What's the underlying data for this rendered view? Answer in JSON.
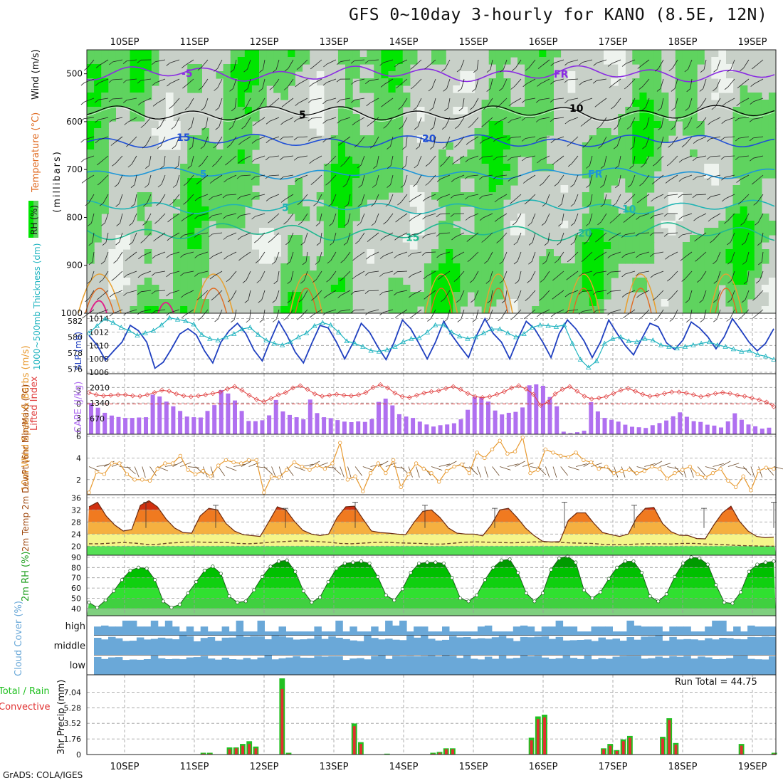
{
  "title": "GFS 0~10day 3-hourly for KANO (8.5E, 12N)",
  "footer": "GrADS: COLA/IGES",
  "run_total": "Run Total = 44.75",
  "colors": {
    "rh_dark": "#00e600",
    "rh_mid": "#5fd35f",
    "rh_light": "#c8d0c8",
    "rh_white": "#eef3ee",
    "purple": "#8a2be2",
    "blue": "#1f4fd6",
    "lightblue": "#1e96d8",
    "teal": "#20b4b4",
    "green_teal": "#20b890",
    "orange": "#e8a030",
    "darkorange": "#e06a20",
    "magenta": "#e0208a",
    "slp": "#2040c0",
    "thickness": "#20b4c0",
    "cape": "#b070f0",
    "li": "#e04040",
    "wind10": "#e89a30",
    "cloud": "#6aa8d8",
    "precip_green": "#22c022",
    "precip_red": "#e03030"
  },
  "chart_data": [
    {
      "type": "heatmap",
      "panel": "upper-air",
      "x_labels": [
        "10SEP",
        "11SEP",
        "12SEP",
        "13SEP",
        "14SEP",
        "15SEP",
        "16SEP",
        "17SEP",
        "18SEP",
        "19SEP"
      ],
      "y_ticks": [
        500,
        600,
        700,
        800,
        900,
        1000
      ],
      "ylim": [
        450,
        1000
      ],
      "ylabel": "(millibars)",
      "legend": [
        "RH (%)",
        "Temperature (°C)",
        "Wind (m/s)"
      ],
      "contour_labels": [
        "-5",
        "FR",
        "5",
        "10",
        "15",
        "20",
        "-5",
        "FR",
        "5",
        "10",
        "15",
        "20"
      ]
    },
    {
      "type": "line",
      "panel": "slp-thickness",
      "ylabel_left": "1000~500mb Thickness (dm)",
      "ylabel_right": "SLP (mb)",
      "left_ticks": [
        576,
        578,
        580,
        582
      ],
      "right_ticks": [
        1006,
        1008,
        1010,
        1012,
        1014
      ],
      "series": [
        {
          "name": "SLP",
          "axis": "right",
          "values": [
            1011.5,
            1010,
            1007.8,
            1009.2,
            1010.5,
            1013,
            1012.2,
            1010.5,
            1006.6,
            1007.5,
            1009.5,
            1011.7,
            1012.5,
            1011.6,
            1009.2,
            1007.4,
            1010.5,
            1012.2,
            1013.3,
            1011.8,
            1009.3,
            1007.7,
            1010.8,
            1013.6,
            1011.5,
            1009,
            1007.4,
            1010.3,
            1013,
            1012.6,
            1010.5,
            1008,
            1010.4,
            1013.3,
            1012,
            1009.8,
            1007.9,
            1010.5,
            1013.8,
            1012.5,
            1010.3,
            1008,
            1010.5,
            1013.6,
            1011.5,
            1009.8,
            1008.2,
            1011.5,
            1014,
            1011.8,
            1010.5,
            1008,
            1011,
            1013.6,
            1012.5,
            1010.5,
            1008.2,
            1011.8,
            1013.8,
            1012.5,
            1010.7,
            1008.2,
            1010.5,
            1013.8,
            1011.8,
            1010,
            1008.6,
            1011,
            1013.3,
            1012.8,
            1010.4,
            1009.4,
            1010.8,
            1013.5,
            1012.6,
            1011.3,
            1009.5,
            1011.3,
            1014,
            1012.3,
            1010.5,
            1009.2,
            1010.3,
            1012.5
          ]
        },
        {
          "name": "Thickness",
          "axis": "left",
          "values": [
            580.5,
            581.4,
            582.3,
            581.8,
            581.2,
            580.8,
            580.2,
            580.5,
            580.8,
            581.5,
            582.4,
            582.2,
            582,
            581.6,
            580.3,
            579.8,
            579.6,
            580,
            580.4,
            581,
            581.2,
            580.3,
            579.6,
            579.2,
            579,
            579.4,
            580,
            580.5,
            581.4,
            581.8,
            581.5,
            580.6,
            579.5,
            579.2,
            578.8,
            578.3,
            578.2,
            578.4,
            578.8,
            579.4,
            579.8,
            579.9,
            580.6,
            581.5,
            581.5,
            580.6,
            580.1,
            579.8,
            580,
            580.5,
            581,
            581,
            580.5,
            580,
            580.4,
            581.2,
            581.5,
            581.4,
            581.3,
            581.5,
            579.2,
            577.2,
            576.2,
            577,
            579.2,
            579.8,
            580,
            579.5,
            579.4,
            579.8,
            579.6,
            579,
            578.8,
            578.6,
            578.8,
            579,
            579.2,
            579.4,
            579,
            578.8,
            578.5,
            578.2,
            578.3,
            577.8,
            577.6,
            577.2
          ]
        }
      ]
    },
    {
      "type": "bar",
      "panel": "cape-li",
      "ylabel_left": "Lifted Index",
      "ylabel_right": "CAPE (J/kg)",
      "li_ticks": [
        "-3",
        "0",
        "3",
        "6"
      ],
      "cape_ticks": [
        "2010",
        "1340",
        "670"
      ],
      "series": [
        {
          "name": "CAPE",
          "values": [
            1340,
            1140,
            920,
            800,
            740,
            700,
            700,
            720,
            730,
            1700,
            1620,
            1400,
            1200,
            1000,
            760,
            730,
            720,
            1000,
            1250,
            1900,
            1750,
            1450,
            1000,
            570,
            560,
            600,
            810,
            1470,
            980,
            830,
            730,
            640,
            1490,
            910,
            730,
            690,
            610,
            540,
            520,
            550,
            530,
            650,
            1390,
            1530,
            1240,
            860,
            760,
            700,
            540,
            420,
            330,
            390,
            420,
            470,
            640,
            1050,
            1600,
            1580,
            1400,
            1020,
            850,
            920,
            960,
            1150,
            2100,
            2140,
            2080,
            1600,
            1200,
            110,
            50,
            90,
            150,
            1380,
            980,
            700,
            620,
            540,
            410,
            320,
            300,
            270,
            390,
            480,
            590,
            770,
            940,
            750,
            560,
            530,
            410,
            370,
            290,
            550,
            900,
            620,
            420,
            340,
            240,
            280
          ]
        },
        {
          "name": "LI",
          "values": [
            -2.5,
            -2,
            -1.8,
            -1.9,
            -2,
            -2,
            -1.8,
            -1.7,
            -2,
            -2.5,
            -3,
            -2.8,
            -2.2,
            -1.8,
            -1.6,
            -1.8,
            -2,
            -2.3,
            -2.6,
            -3.3,
            -3.8,
            -3,
            -1.9,
            -1,
            -0.5,
            -1.2,
            -2,
            -2.5,
            -3.5,
            -4,
            -3.2,
            -2.2,
            -1.7,
            -1.9,
            -2.1,
            -1.9,
            -1.8,
            -2,
            -2.5,
            -3.6,
            -4.2,
            -3.5,
            -2.4,
            -1.6,
            -1.4,
            -1.9,
            -2.4,
            -2.7,
            -2.9,
            -3.4,
            -3.8,
            -3.2,
            -2.3,
            -1.6,
            -1.4,
            -1.6,
            -2.1,
            -2.7,
            -3.5,
            -4,
            -3.3,
            -2.1,
            0.3,
            -0.4,
            -2.2,
            -3.2,
            -3.8,
            -2.8,
            -1.7,
            -1.1,
            -1.3,
            -1.6,
            -2.3,
            -3,
            -3.4,
            -2.8,
            -2.1,
            -1.7,
            -1.9,
            -2.3,
            -2.6,
            -2.6,
            -2.4,
            -2,
            -1.6,
            -1.9,
            -2.3,
            -2.5,
            -2.3,
            -1.9,
            -1.7,
            -1.3,
            -0.9,
            -0.4,
            0.6
          ]
        }
      ]
    },
    {
      "type": "line",
      "panel": "wind10m",
      "ylabel": "10m Wind Speed & Barbs (m/s)",
      "y_ticks": [
        2,
        4,
        6
      ],
      "ylim": [
        0.6,
        6.2
      ],
      "series": [
        {
          "name": "10m Wind Speed",
          "values": [
            0.8,
            2.7,
            2.5,
            3.5,
            3.5,
            2.5,
            2,
            2,
            1.9,
            3,
            3.5,
            3.5,
            4.2,
            2.9,
            2.5,
            2.8,
            2.3,
            3.3,
            3.8,
            3.6,
            3.5,
            3.8,
            3.8,
            0.8,
            2.3,
            2.2,
            2.9,
            3.6,
            3.2,
            2.9,
            3.3,
            3,
            3.5,
            5.4,
            2,
            2.3,
            0.9,
            2.6,
            3.5,
            2.6,
            3.8,
            1.3,
            2.5,
            3.5,
            3,
            2.6,
            1.8,
            2.8,
            3.2,
            3.4,
            2.6,
            4.5,
            4,
            4.8,
            5.6,
            4.4,
            4.6,
            5.9,
            2.6,
            2.9,
            4.8,
            4.5,
            4.2,
            4.1,
            4.5,
            3.8,
            3.6,
            3,
            3.2,
            2.6,
            2.8,
            2.9,
            2.6,
            2.8,
            3.2,
            3,
            2.1,
            2.6,
            2.9,
            3.2,
            2.5,
            2.2,
            2.6,
            3,
            1.9,
            1.3,
            2.3,
            1,
            2.8,
            3.1,
            3
          ]
        }
      ]
    },
    {
      "type": "area",
      "panel": "temp-dewpoint",
      "ylabel": "2m Temp 2m DewPt (6hr Min/Max) (°C)",
      "y_ticks": [
        20,
        24,
        28,
        32,
        36
      ],
      "ylim": [
        17,
        37
      ],
      "series": [
        {
          "name": "2m Temp",
          "values": [
            33,
            34.5,
            30,
            27,
            25,
            25.5,
            33.5,
            35,
            33,
            29,
            26,
            24.5,
            24.3,
            30,
            32.5,
            32,
            27.5,
            25,
            23.8,
            23.5,
            23.2,
            28,
            33,
            32,
            28.2,
            25.2,
            24,
            23.5,
            24,
            29.5,
            33,
            33.2,
            29,
            25,
            24.5,
            24.3,
            24,
            23.8,
            28,
            31.5,
            32,
            29.5,
            26,
            24.3,
            24,
            24,
            23.4,
            27,
            32,
            32.5,
            29.5,
            26,
            23.5,
            21.6,
            21.4,
            21.5,
            28.5,
            31,
            31,
            27.5,
            24.5,
            23.8,
            23.2,
            24,
            29.5,
            32.5,
            32.8,
            27.5,
            24.8,
            23.6,
            23.5,
            22.5,
            22.4,
            27,
            31,
            33.2,
            28.2,
            25,
            23.2,
            22.8,
            23
          ]
        },
        {
          "name": "2m DewPt",
          "values": [
            20.8,
            20.8,
            21,
            21.2,
            21,
            20.6,
            20.6,
            21,
            21.2,
            21.4,
            21.3,
            21.2,
            21.2,
            20.9,
            20.8,
            21,
            21.3,
            21.5,
            21.7,
            21.7,
            21.5,
            21.3,
            20.9,
            20.8,
            21,
            21.2,
            21.3,
            21.1,
            21,
            20.9,
            20.7,
            20.7,
            21,
            21.3,
            21.4,
            21.3,
            21.2,
            21.1,
            21.2,
            21.4,
            21.4,
            21.3,
            21.1,
            21,
            20.9,
            20.6,
            20.5,
            20.5,
            20.7,
            20.8,
            20.8,
            20.7,
            20.9,
            20.9,
            20.7,
            20.6,
            20.4,
            20.2,
            20.1,
            20,
            20
          ]
        }
      ]
    },
    {
      "type": "area",
      "panel": "rh2m",
      "ylabel": "2m RH (%)",
      "y_ticks": [
        40,
        50,
        60,
        70,
        80,
        90
      ],
      "ylim": [
        33,
        92
      ],
      "series": [
        {
          "name": "2m RH",
          "values": [
            46,
            41,
            48,
            57,
            68,
            77,
            80,
            79,
            68,
            47,
            41,
            44,
            55,
            66,
            77,
            81,
            74,
            52,
            46,
            47,
            58,
            71,
            81,
            86,
            87,
            76,
            57,
            46,
            51,
            66,
            79,
            84,
            85,
            86,
            84,
            71,
            53,
            48,
            59,
            75,
            84,
            85,
            85,
            84,
            70,
            50,
            47,
            53,
            68,
            80,
            87,
            88,
            75,
            55,
            47,
            55,
            78,
            89,
            91,
            85,
            58,
            50,
            56,
            69,
            80,
            86,
            86,
            75,
            52,
            47,
            54,
            71,
            84,
            90,
            89,
            83,
            63,
            46,
            45,
            56,
            76,
            83,
            85,
            86
          ]
        }
      ]
    },
    {
      "type": "bar",
      "panel": "cloud-cover",
      "ylabel": "Cloud Cover (%)",
      "rows": [
        "high",
        "middle",
        "low"
      ]
    },
    {
      "type": "bar",
      "panel": "precip",
      "ylabel": "3hr Precip (mm)",
      "series_labels": [
        "Total / Rain",
        "Convective"
      ],
      "y_ticks": [
        "1.76",
        "3.52",
        "5.28",
        "7.04"
      ],
      "ylim": [
        0,
        9
      ],
      "series": [
        {
          "name": "Total",
          "values": [
            0,
            0,
            0,
            0,
            0,
            0,
            0,
            0,
            0,
            0,
            0,
            0,
            0,
            0,
            0,
            0,
            0,
            0.2,
            0.2,
            0,
            0,
            0.8,
            0.8,
            1.2,
            1.5,
            0.9,
            0,
            0,
            0,
            8.6,
            0.2,
            0,
            0,
            0,
            0,
            0,
            0,
            0,
            0,
            0,
            3.5,
            1.4,
            0,
            0,
            0,
            0.1,
            0,
            0,
            0,
            0,
            0,
            0,
            0.2,
            0.3,
            0.7,
            0.7,
            0,
            0,
            0,
            0,
            0,
            0,
            0,
            0,
            0,
            0,
            0,
            1.9,
            4.3,
            4.5,
            0,
            0,
            0,
            0,
            0,
            0,
            0,
            0,
            0.7,
            1.2,
            0.5,
            1.7,
            2.1,
            0,
            0,
            0,
            0,
            2,
            4.1,
            1.3,
            0,
            0,
            0,
            0,
            0,
            0,
            0,
            0,
            0,
            1.2,
            0,
            0,
            0,
            0,
            0.2
          ]
        },
        {
          "name": "Convective",
          "values": [
            0,
            0,
            0,
            0,
            0,
            0,
            0,
            0,
            0,
            0,
            0,
            0,
            0,
            0,
            0,
            0,
            0,
            0.1,
            0.1,
            0,
            0,
            0.6,
            0.7,
            1,
            1.2,
            0.7,
            0,
            0,
            0,
            7.4,
            0.1,
            0,
            0,
            0,
            0,
            0,
            0,
            0,
            0,
            0,
            3.2,
            1.2,
            0,
            0,
            0,
            0,
            0,
            0,
            0,
            0,
            0,
            0,
            0.1,
            0.2,
            0.6,
            0.6,
            0,
            0,
            0,
            0,
            0,
            0,
            0,
            0,
            0,
            0,
            0,
            1.6,
            4,
            4.2,
            0,
            0,
            0,
            0,
            0,
            0,
            0,
            0,
            0.6,
            1,
            0.4,
            1.5,
            1.9,
            0,
            0,
            0,
            0,
            1.8,
            3.9,
            1.1,
            0,
            0,
            0,
            0,
            0,
            0,
            0,
            0,
            0,
            1,
            0,
            0,
            0,
            0,
            0.1
          ]
        }
      ]
    }
  ]
}
